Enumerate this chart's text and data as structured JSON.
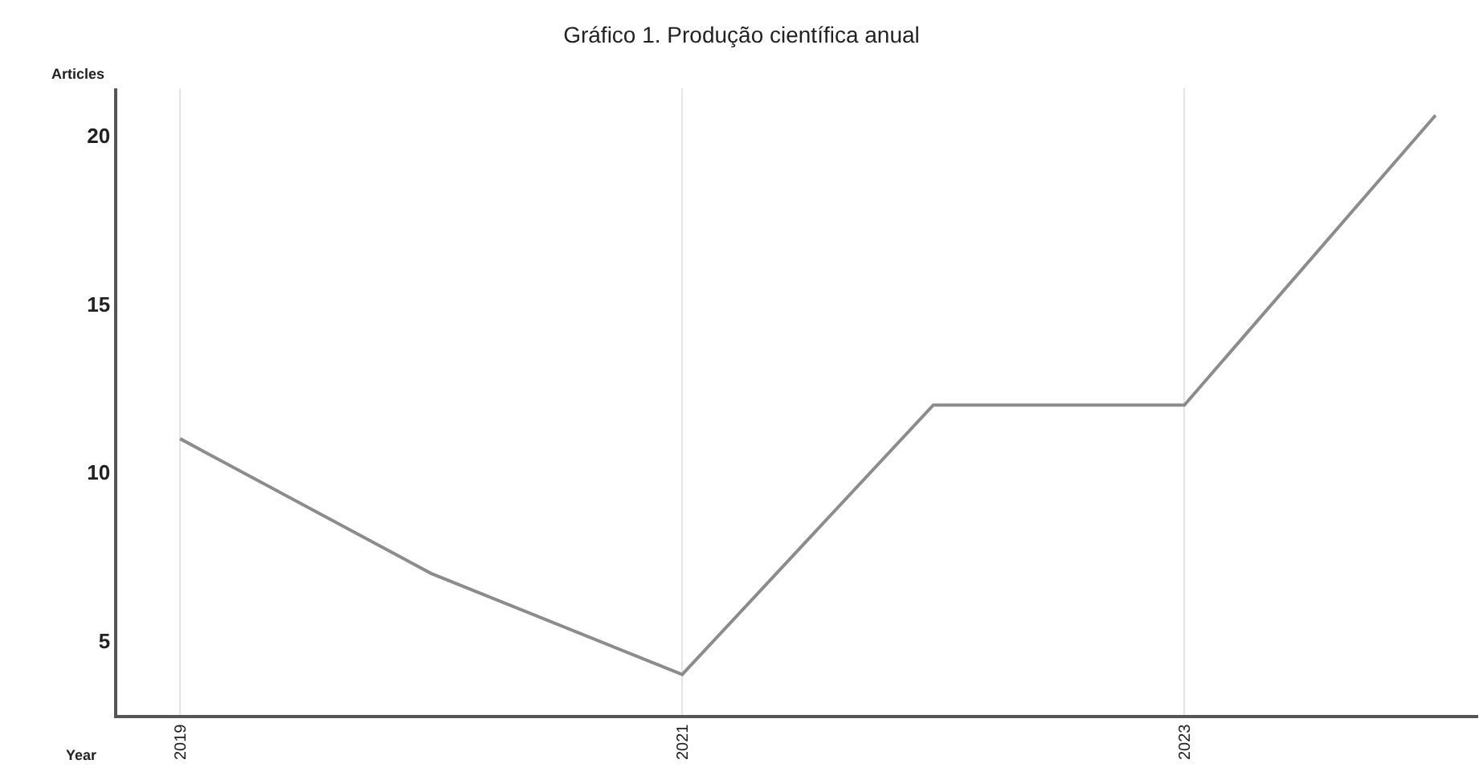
{
  "chart_data": {
    "type": "line",
    "title": "Gráfico 1. Produção científica anual",
    "xlabel": "Year",
    "ylabel": "Articles",
    "x": [
      2019,
      2020,
      2021,
      2022,
      2023,
      2024
    ],
    "series": [
      {
        "color": "#8c8c8c",
        "values": [
          11,
          7,
          4,
          12,
          12,
          20.6
        ]
      }
    ],
    "xlim": [
      2018.75,
      2024.17
    ],
    "xticks": [
      2019,
      2021,
      2023
    ],
    "ylim": [
      2.8,
      21.4
    ],
    "yticks": [
      5,
      10,
      15,
      20
    ],
    "grid": "x",
    "marker": "none",
    "line_style": "solid"
  }
}
